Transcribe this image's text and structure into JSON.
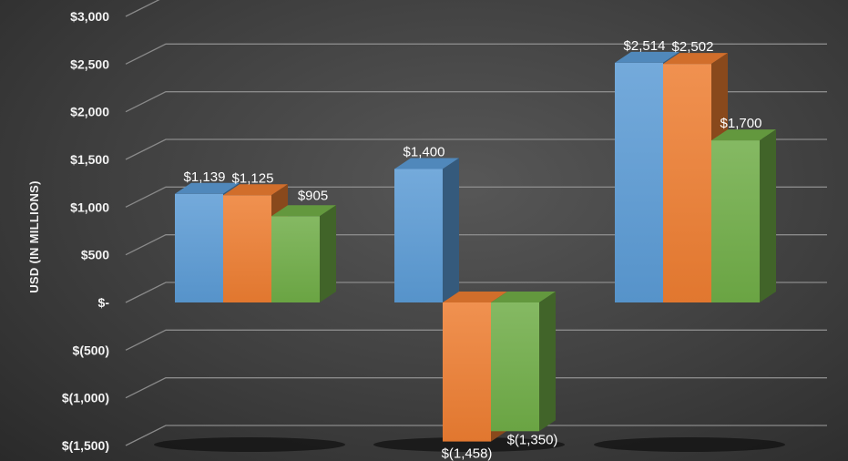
{
  "chart_data": {
    "type": "bar",
    "title": "",
    "xlabel": "",
    "ylabel": "USD (IN MILLIONS)",
    "ylim": [
      -1500,
      3000
    ],
    "yticks": [
      3000,
      2500,
      2000,
      1500,
      1000,
      500,
      0,
      -500,
      -1000,
      -1500
    ],
    "ytick_labels": [
      "$3,000",
      "$2,500",
      "$2,000",
      "$1,500",
      "$1,000",
      "$500",
      "$-",
      "$(500)",
      "$(1,000)",
      "$(1,500)"
    ],
    "categories": [
      "",
      "",
      ""
    ],
    "grid": true,
    "style": "3d-clustered-column",
    "series": [
      {
        "color": "#5b9bd5",
        "values": [
          1139,
          1400,
          2514
        ],
        "labels": [
          "$1,139",
          "$1,400",
          "$2,514"
        ]
      },
      {
        "color": "#ed7d31",
        "values": [
          1125,
          -1458,
          2502
        ],
        "labels": [
          "$1,125",
          "$(1,458)",
          "$2,502"
        ]
      },
      {
        "color": "#70ad47",
        "values": [
          905,
          -1350,
          1700
        ],
        "labels": [
          "$905",
          "$(1,350)",
          "$1,700"
        ]
      }
    ]
  }
}
